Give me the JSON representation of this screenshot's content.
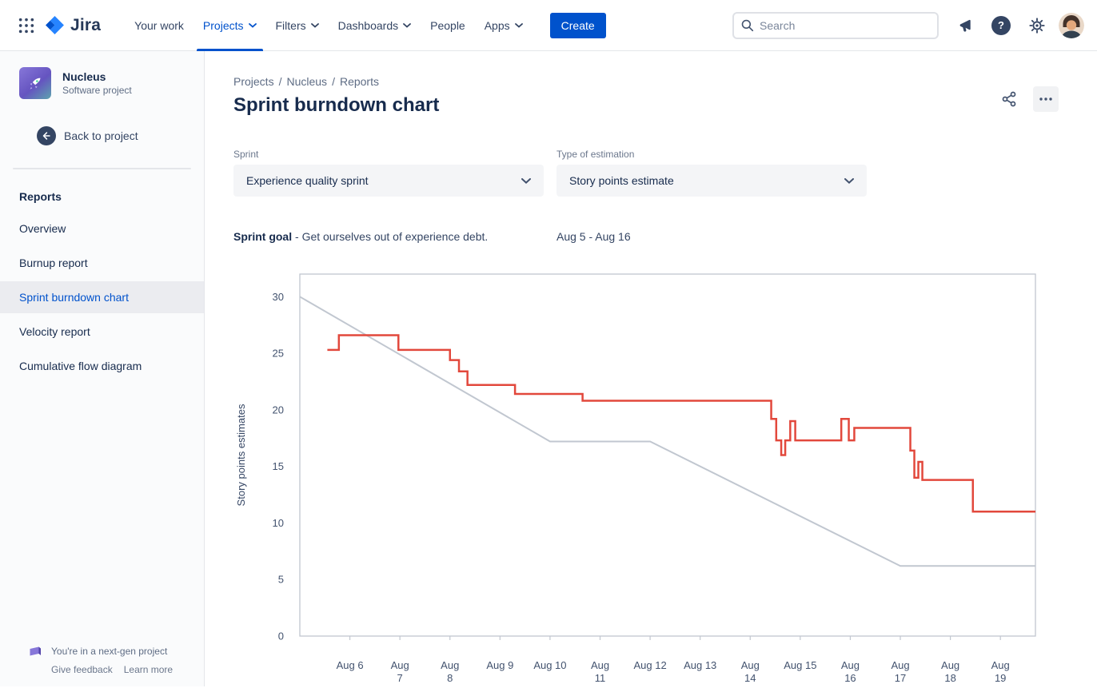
{
  "top_nav": {
    "logo_text": "Jira",
    "items": [
      {
        "label": "Your work",
        "chevron": false,
        "active": false
      },
      {
        "label": "Projects",
        "chevron": true,
        "active": true
      },
      {
        "label": "Filters",
        "chevron": true,
        "active": false
      },
      {
        "label": "Dashboards",
        "chevron": true,
        "active": false
      },
      {
        "label": "People",
        "chevron": false,
        "active": false
      },
      {
        "label": "Apps",
        "chevron": true,
        "active": false
      }
    ],
    "create_label": "Create",
    "search_placeholder": "Search"
  },
  "sidebar": {
    "project_name": "Nucleus",
    "project_type": "Software project",
    "back_label": "Back to project",
    "section_title": "Reports",
    "items": [
      {
        "label": "Overview",
        "selected": false
      },
      {
        "label": "Burnup report",
        "selected": false
      },
      {
        "label": "Sprint burndown chart",
        "selected": true
      },
      {
        "label": "Velocity report",
        "selected": false
      },
      {
        "label": "Cumulative flow diagram",
        "selected": false
      }
    ],
    "footer": {
      "message": "You're in a next-gen project",
      "links": [
        "Give feedback",
        "Learn more"
      ]
    }
  },
  "main": {
    "breadcrumb_items": [
      "Projects",
      "Nucleus",
      "Reports"
    ],
    "breadcrumb_separator": "/",
    "title": "Sprint burndown chart",
    "filters": [
      {
        "label": "Sprint",
        "value": "Experience quality sprint"
      },
      {
        "label": "Type of estimation",
        "value": "Story points estimate"
      }
    ],
    "sprint_goal_label": "Sprint goal",
    "sprint_goal_text": "- Get ourselves out of experience debt.",
    "date_range": "Aug 5 - Aug 16"
  },
  "colors": {
    "brand": "#0052CC",
    "selected_item": "#0052CC",
    "burndown_line": "#E2483C",
    "guideline": "#C1C7D0"
  },
  "icons": {
    "app-switcher": "grid-dots",
    "jira-logo": "blue-diamond",
    "search": "magnifier",
    "feedback": "megaphone",
    "help": "question-circle",
    "settings": "gear",
    "share": "share-nodes",
    "more": "ellipsis",
    "back": "arrow-left-circle",
    "next-gen": "purple-flag",
    "chevron": "chevron-down"
  },
  "chart_data": {
    "type": "line",
    "title": "Sprint burndown chart",
    "xlabel": "",
    "ylabel": "Story points estimates",
    "xlim": [
      0,
      14.7
    ],
    "ylim": [
      0,
      32
    ],
    "grid": false,
    "legend": "none",
    "axis_color": "#C1C7D0",
    "tick_color": "#42526E",
    "y_ticks": [
      0,
      5,
      10,
      15,
      20,
      25,
      30
    ],
    "x_ticks": [
      {
        "day": 1,
        "label": "Aug 6"
      },
      {
        "day": 2,
        "label": "Aug\n7"
      },
      {
        "day": 3,
        "label": "Aug\n8"
      },
      {
        "day": 4,
        "label": "Aug 9"
      },
      {
        "day": 5,
        "label": "Aug 10"
      },
      {
        "day": 6,
        "label": "Aug\n11"
      },
      {
        "day": 7,
        "label": "Aug 12"
      },
      {
        "day": 8,
        "label": "Aug 13"
      },
      {
        "day": 9,
        "label": "Aug\n14"
      },
      {
        "day": 10,
        "label": "Aug 15"
      },
      {
        "day": 11,
        "label": "Aug\n16"
      },
      {
        "day": 12,
        "label": "Aug\n17"
      },
      {
        "day": 13,
        "label": "Aug\n18"
      },
      {
        "day": 14,
        "label": "Aug\n19"
      }
    ],
    "series": [
      {
        "name": "Guideline",
        "color": "#C1C7D0",
        "line": "linear",
        "width": 2,
        "points": [
          [
            0,
            30
          ],
          [
            5,
            17.2
          ],
          [
            7,
            17.2
          ],
          [
            12,
            6.2
          ],
          [
            14.7,
            6.2
          ]
        ]
      },
      {
        "name": "Remaining work",
        "color": "#E2483C",
        "line": "step-after",
        "width": 2.5,
        "points": [
          [
            0.55,
            25.3
          ],
          [
            0.78,
            26.6
          ],
          [
            1.97,
            25.3
          ],
          [
            3.0,
            24.4
          ],
          [
            3.18,
            23.4
          ],
          [
            3.35,
            22.2
          ],
          [
            4.3,
            21.4
          ],
          [
            5.65,
            20.8
          ],
          [
            9.42,
            19.2
          ],
          [
            9.52,
            17.3
          ],
          [
            9.62,
            16.0
          ],
          [
            9.7,
            17.3
          ],
          [
            9.8,
            19.0
          ],
          [
            9.9,
            17.3
          ],
          [
            10.82,
            19.2
          ],
          [
            10.97,
            17.3
          ],
          [
            11.08,
            18.4
          ],
          [
            12.2,
            16.4
          ],
          [
            12.28,
            14.0
          ],
          [
            12.36,
            15.4
          ],
          [
            12.44,
            13.8
          ],
          [
            13.45,
            11.0
          ],
          [
            14.7,
            11.0
          ]
        ]
      }
    ]
  }
}
